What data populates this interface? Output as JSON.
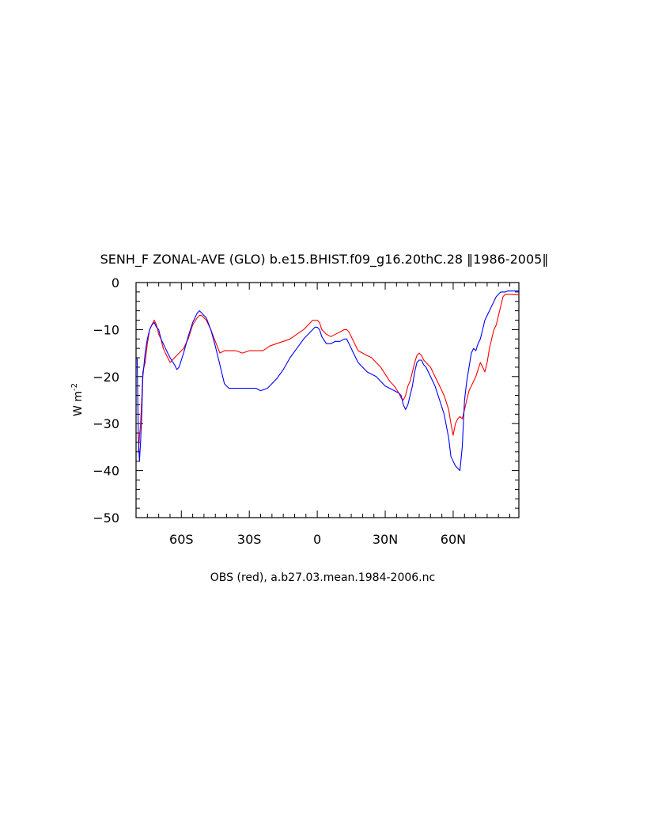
{
  "chart_data": {
    "type": "line",
    "title": "SENH_F ZONAL-AVE (GLO) b.e15.BHIST.f09_g16.20thC.28 ‖1986-2005‖",
    "ylabel": "W m",
    "ylabel_superscript": "-2",
    "caption": "OBS (red), a.b27.03.mean.1984-2006.nc",
    "xlim": [
      -80,
      89
    ],
    "ylim": [
      -50,
      0
    ],
    "x_ticks": [
      {
        "value": -60,
        "label": "60S"
      },
      {
        "value": -30,
        "label": "30S"
      },
      {
        "value": 0,
        "label": "0"
      },
      {
        "value": 30,
        "label": "30N"
      },
      {
        "value": 60,
        "label": "60N"
      }
    ],
    "y_ticks": [
      {
        "value": 0,
        "label": "0"
      },
      {
        "value": -10,
        "label": "−10"
      },
      {
        "value": -20,
        "label": "−20"
      },
      {
        "value": -30,
        "label": "−30"
      },
      {
        "value": -40,
        "label": "−40"
      },
      {
        "value": -50,
        "label": "−50"
      }
    ],
    "grid": false,
    "series": [
      {
        "color": "#ff0000",
        "x": [
          -79,
          -78.5,
          -78,
          -77.5,
          -77,
          -76,
          -75,
          -74,
          -73,
          -72,
          -71,
          -70,
          -69,
          -68,
          -67,
          -66,
          -65,
          -63,
          -61,
          -59,
          -57,
          -55,
          -53,
          -52,
          -51,
          -50,
          -49,
          -47,
          -45,
          -43,
          -41,
          -39,
          -36,
          -33,
          -30,
          -27,
          -24,
          -21,
          -18,
          -15,
          -12,
          -9,
          -6,
          -4,
          -2,
          -1,
          0,
          1,
          2,
          4,
          6,
          8,
          10,
          12,
          13,
          14,
          16,
          18,
          20,
          22,
          24,
          26,
          28,
          30,
          32,
          34,
          36,
          37,
          38,
          39,
          40,
          41,
          42,
          43,
          44,
          45,
          46,
          47,
          48,
          50,
          52,
          54,
          56,
          58,
          59,
          60,
          61,
          62,
          63,
          64,
          65,
          66,
          67,
          68,
          69,
          70,
          71,
          72,
          73,
          74,
          75,
          76,
          77,
          78,
          79,
          80,
          81,
          82,
          83,
          84,
          85,
          86,
          87,
          88,
          89
        ],
        "y": [
          -36,
          -33,
          -30,
          -25,
          -19,
          -17,
          -13,
          -10,
          -9,
          -8,
          -9,
          -11,
          -12,
          -14,
          -15,
          -16,
          -17,
          -16,
          -15,
          -14,
          -12,
          -9,
          -7.5,
          -7,
          -7,
          -7.5,
          -8,
          -10,
          -12.5,
          -15,
          -14.5,
          -14.5,
          -14.5,
          -15,
          -14.5,
          -14.5,
          -14.5,
          -13.5,
          -13,
          -12.5,
          -12,
          -11,
          -10,
          -9,
          -8,
          -8,
          -8,
          -8.5,
          -10,
          -11,
          -11.5,
          -11,
          -10.5,
          -10,
          -10,
          -10.5,
          -12.5,
          -14.5,
          -15,
          -15.5,
          -16,
          -17,
          -18,
          -19.5,
          -21,
          -22,
          -23.5,
          -24.5,
          -25,
          -24,
          -22,
          -21,
          -19,
          -17,
          -15.5,
          -15,
          -15.5,
          -16.5,
          -17,
          -18,
          -20,
          -22,
          -24,
          -27,
          -30,
          -32.5,
          -30,
          -29,
          -28.5,
          -29,
          -27,
          -25,
          -23,
          -22,
          -21,
          -20,
          -18.5,
          -17,
          -18,
          -19,
          -17,
          -14,
          -12,
          -10,
          -9,
          -7,
          -5,
          -3,
          -2.5,
          -2.5,
          -2.5,
          -2.5,
          -2.6,
          -2.6,
          -2.6
        ]
      },
      {
        "color": "#0000ff",
        "x": [
          -79.5,
          -79,
          -78.5,
          -78,
          -77.5,
          -77,
          -76,
          -75,
          -74,
          -73,
          -72,
          -71,
          -70,
          -69,
          -68,
          -67,
          -66,
          -65,
          -63,
          -62,
          -61,
          -59,
          -57,
          -55,
          -53,
          -52,
          -51,
          -50,
          -49,
          -47,
          -45,
          -43,
          -41,
          -39,
          -36,
          -33,
          -30,
          -27,
          -25,
          -22,
          -18,
          -15,
          -12,
          -9,
          -6,
          -4,
          -2,
          -1,
          0,
          1,
          2,
          4,
          6,
          8,
          10,
          12,
          13,
          14,
          16,
          18,
          20,
          22,
          24,
          26,
          28,
          30,
          32,
          34,
          36,
          37,
          38,
          39,
          40,
          41,
          42,
          43,
          44,
          45,
          46,
          47,
          48,
          50,
          52,
          54,
          56,
          58,
          59,
          60,
          61,
          62,
          63,
          64,
          65,
          66,
          67,
          68,
          69,
          70,
          71,
          72,
          73,
          74,
          75,
          76,
          77,
          78,
          79,
          80,
          81,
          82,
          83,
          84,
          85,
          86,
          87,
          88,
          89
        ],
        "y": [
          -16,
          -33,
          -38,
          -34,
          -28,
          -20,
          -15,
          -12,
          -10,
          -9,
          -8.5,
          -9.5,
          -10,
          -12,
          -13,
          -14,
          -15,
          -16,
          -17.5,
          -18.5,
          -18,
          -15,
          -11.5,
          -8.5,
          -6.5,
          -6,
          -6.5,
          -7,
          -7.5,
          -10,
          -13.5,
          -17.5,
          -21.5,
          -22.5,
          -22.5,
          -22.5,
          -22.5,
          -22.5,
          -23,
          -22.5,
          -20.5,
          -18.5,
          -16,
          -14,
          -12,
          -11,
          -10,
          -9.5,
          -9.5,
          -10,
          -11.5,
          -13,
          -13,
          -12.5,
          -12.5,
          -12,
          -12,
          -13,
          -15,
          -17,
          -18,
          -19,
          -19.5,
          -20,
          -21,
          -22,
          -22.5,
          -23,
          -23.5,
          -24,
          -26,
          -27,
          -26,
          -24,
          -22,
          -19,
          -17,
          -16.5,
          -16.5,
          -17.5,
          -18,
          -20,
          -22,
          -25,
          -28,
          -33,
          -37,
          -38,
          -39,
          -39.5,
          -40,
          -35,
          -25,
          -21,
          -18,
          -15,
          -14,
          -14.5,
          -13,
          -12,
          -10,
          -8,
          -7,
          -6,
          -5,
          -4,
          -3,
          -2.5,
          -2,
          -2,
          -2,
          -1.8,
          -1.8,
          -1.8,
          -1.8,
          -1.8,
          -1.8
        ]
      }
    ]
  }
}
